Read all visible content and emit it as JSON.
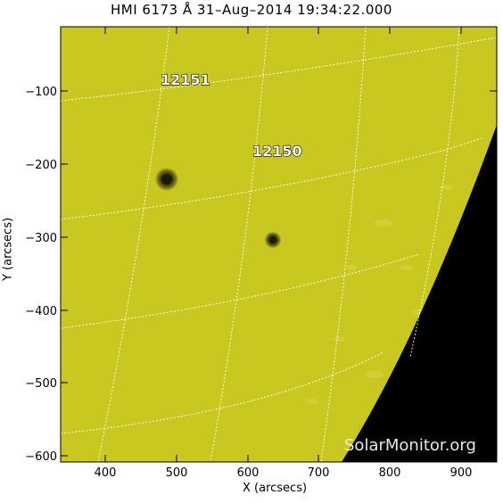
{
  "title": "HMI 6173 Å 31–Aug–2014 19:34:22.000",
  "xlabel": "X (arcsecs)",
  "ylabel": "Y (arcsecs)",
  "x_ticks": [
    "400",
    "500",
    "600",
    "700",
    "800",
    "900"
  ],
  "y_ticks": [
    "−100",
    "−200",
    "−300",
    "−400",
    "−500",
    "−600"
  ],
  "regions": [
    {
      "label": "12151"
    },
    {
      "label": "12150"
    }
  ],
  "watermark": "SolarMonitor.org",
  "colors": {
    "disk": "#c9c820",
    "space": "#000000",
    "grid": "#ffffff"
  }
}
